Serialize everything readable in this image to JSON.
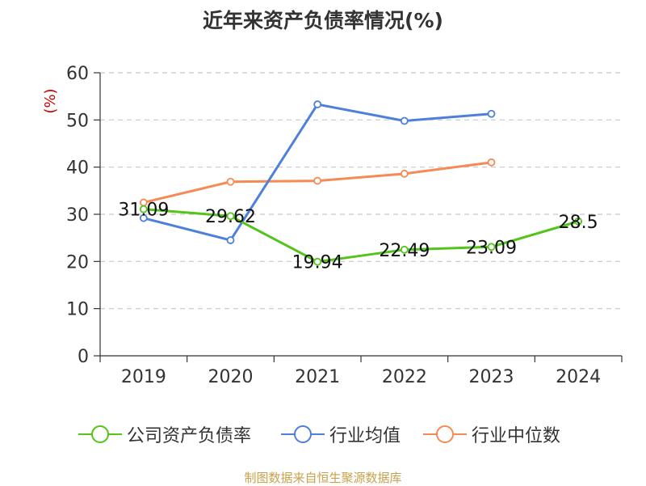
{
  "title": "近年来资产负债率情况(%)",
  "source": "制图数据来自恒生聚源数据库",
  "chart_data": {
    "type": "line",
    "categories": [
      "2019",
      "2020",
      "2021",
      "2022",
      "2023",
      "2024"
    ],
    "ylabel": "(%)",
    "ylim": [
      0,
      60
    ],
    "yticks": [
      0,
      10,
      20,
      30,
      40,
      50,
      60
    ],
    "grid": true,
    "legend_position": "bottom",
    "series": [
      {
        "name": "公司资产负债率",
        "color": "#52c41a",
        "values": [
          31.09,
          29.62,
          19.94,
          22.49,
          23.09,
          28.5
        ],
        "labels": [
          "31.09",
          "29.62",
          "19.94",
          "22.49",
          "23.09",
          "28.5"
        ]
      },
      {
        "name": "行业均值",
        "color": "#4e7fdb",
        "values": [
          29.2,
          24.5,
          53.3,
          49.8,
          51.3,
          null
        ]
      },
      {
        "name": "行业中位数",
        "color": "#f58a55",
        "values": [
          32.5,
          36.9,
          37.1,
          38.6,
          41.0,
          null
        ]
      }
    ]
  }
}
